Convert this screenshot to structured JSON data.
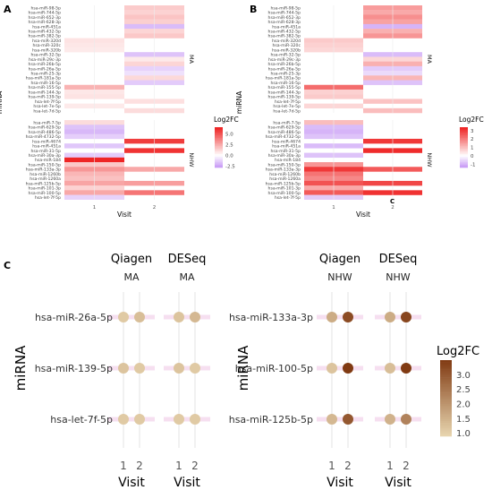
{
  "panel_labels": [
    "A",
    "B",
    "C"
  ],
  "inset_label": "C",
  "chart_data": [
    {
      "type": "heatmap",
      "panel": "A",
      "xlabel": "Visit",
      "ylabel": "miRNA",
      "x_categories": [
        "1",
        "2"
      ],
      "groups": [
        {
          "name": "MA",
          "rows": [
            "hsa-miR-98-5p",
            "hsa-miR-744-5p",
            "hsa-miR-652-3p",
            "hsa-miR-628-3p",
            "hsa-miR-451a",
            "hsa-miR-432-5p",
            "hsa-miR-382-5p",
            "hsa-miR-320d",
            "hsa-miR-320c",
            "hsa-miR-320b",
            "hsa-miR-32-5p",
            "hsa-miR-29c-3p",
            "hsa-miR-26b-5p",
            "hsa-miR-26a-5p",
            "hsa-miR-25-3p",
            "hsa-miR-181a-5p",
            "hsa-miR-16-5p",
            "hsa-miR-155-5p",
            "hsa-miR-144-3p",
            "hsa-miR-139-5p",
            "hsa-let-7f-5p",
            "hsa-let-7e-5p",
            "hsa-let-7d-5p"
          ],
          "values": [
            [
              null,
              1.5
            ],
            [
              null,
              1.3
            ],
            [
              null,
              1.7
            ],
            [
              null,
              1.4
            ],
            [
              null,
              -1.8
            ],
            [
              null,
              1.2
            ],
            [
              null,
              1.6
            ],
            [
              0.8,
              null
            ],
            [
              0.7,
              null
            ],
            [
              0.6,
              null
            ],
            [
              null,
              -1.6
            ],
            [
              null,
              0.6
            ],
            [
              null,
              1.2
            ],
            [
              null,
              -1.2
            ],
            [
              null,
              -0.8
            ],
            [
              null,
              1.1
            ],
            [
              null,
              -1.4
            ],
            [
              2.2,
              null
            ],
            [
              0.7,
              null
            ],
            [
              0.8,
              null
            ],
            [
              null,
              0.9
            ],
            [
              0.6,
              null
            ],
            [
              null,
              1.0
            ]
          ]
        },
        {
          "name": "NHW",
          "rows": [
            "hsa-miR-7-5p",
            "hsa-miR-629-5p",
            "hsa-miR-486-5p",
            "hsa-miR-4732-5p",
            "hsa-miR-4674",
            "hsa-miR-451a",
            "hsa-miR-31-5p",
            "hsa-miR-30a-3p",
            "hsa-miR-184",
            "hsa-miR-150-5p",
            "hsa-miR-133a-3p",
            "hsa-miR-1260b",
            "hsa-miR-1260a",
            "hsa-miR-125b-5p",
            "hsa-miR-101-3p",
            "hsa-miR-100-5p",
            "hsa-let-7f-5p"
          ],
          "values": [
            [
              1.0,
              null
            ],
            [
              -1.6,
              null
            ],
            [
              -1.9,
              null
            ],
            [
              -1.3,
              null
            ],
            [
              null,
              5.6
            ],
            [
              -1.5,
              null
            ],
            [
              null,
              5.9
            ],
            [
              -1.4,
              null
            ],
            [
              6.3,
              null
            ],
            [
              1.6,
              null
            ],
            [
              3.0,
              2.5
            ],
            [
              2.1,
              null
            ],
            [
              1.8,
              null
            ],
            [
              2.6,
              2.8
            ],
            [
              1.3,
              null
            ],
            [
              2.5,
              4.0
            ],
            [
              -1.2,
              null
            ]
          ]
        }
      ],
      "legend": {
        "title": "Log2FC",
        "ticks": [
          5.0,
          2.5,
          0.0,
          -2.5
        ],
        "range": [
          -2.8,
          6.5
        ]
      }
    },
    {
      "type": "heatmap",
      "panel": "B",
      "xlabel": "Visit",
      "ylabel": "miRNA",
      "x_categories": [
        "1",
        "2"
      ],
      "groups": [
        {
          "name": "MA",
          "rows": [
            "hsa-miR-98-5p",
            "hsa-miR-744-5p",
            "hsa-miR-652-3p",
            "hsa-miR-628-3p",
            "hsa-miR-451a",
            "hsa-miR-432-5p",
            "hsa-miR-382-5p",
            "hsa-miR-320d",
            "hsa-miR-320c",
            "hsa-miR-320b",
            "hsa-miR-32-5p",
            "hsa-miR-29c-3p",
            "hsa-miR-26b-5p",
            "hsa-miR-26a-5p",
            "hsa-miR-25-3p",
            "hsa-miR-181a-5p",
            "hsa-miR-16-5p",
            "hsa-miR-155-5p",
            "hsa-miR-144-3p",
            "hsa-miR-139-5p",
            "hsa-let-7f-5p",
            "hsa-let-7e-5p",
            "hsa-let-7d-5p"
          ],
          "values": [
            [
              null,
              1.5
            ],
            [
              null,
              1.3
            ],
            [
              null,
              1.7
            ],
            [
              null,
              1.4
            ],
            [
              null,
              -1.0
            ],
            [
              null,
              1.2
            ],
            [
              null,
              1.6
            ],
            [
              0.8,
              null
            ],
            [
              0.7,
              null
            ],
            [
              0.6,
              null
            ],
            [
              null,
              -0.9
            ],
            [
              null,
              0.6
            ],
            [
              null,
              1.2
            ],
            [
              null,
              -0.7
            ],
            [
              null,
              -0.5
            ],
            [
              null,
              1.1
            ],
            [
              null,
              -0.8
            ],
            [
              2.2,
              null
            ],
            [
              0.7,
              null
            ],
            [
              0.8,
              null
            ],
            [
              null,
              0.9
            ],
            [
              0.6,
              null
            ],
            [
              null,
              1.0
            ]
          ]
        },
        {
          "name": "NHW",
          "rows": [
            "hsa-miR-7-5p",
            "hsa-miR-629-5p",
            "hsa-miR-486-5p",
            "hsa-miR-4732-5p",
            "hsa-miR-4674",
            "hsa-miR-451a",
            "hsa-miR-31-5p",
            "hsa-miR-30a-3p",
            "hsa-miR-184",
            "hsa-miR-150-5p",
            "hsa-miR-133a-3p",
            "hsa-miR-1260b",
            "hsa-miR-1260a",
            "hsa-miR-125b-5p",
            "hsa-miR-101-3p",
            "hsa-miR-100-5p",
            "hsa-let-7f-5p"
          ],
          "values": [
            [
              1.0,
              null
            ],
            [
              -0.9,
              null
            ],
            [
              -1.0,
              null
            ],
            [
              -0.8,
              null
            ],
            [
              null,
              3.0
            ],
            [
              -0.9,
              null
            ],
            [
              null,
              3.2
            ],
            [
              -0.8,
              null
            ],
            [
              null,
              null
            ],
            [
              1.6,
              null
            ],
            [
              3.0,
              2.5
            ],
            [
              2.1,
              null
            ],
            [
              1.8,
              null
            ],
            [
              2.6,
              2.8
            ],
            [
              1.3,
              null
            ],
            [
              2.5,
              3.1
            ],
            [
              -0.7,
              null
            ]
          ]
        }
      ],
      "legend": {
        "title": "Log2FC",
        "ticks": [
          3,
          2,
          1,
          0,
          -1
        ],
        "range": [
          -1.4,
          3.4
        ]
      }
    },
    {
      "type": "scatter",
      "panel": "C",
      "ylabel": "miRNA",
      "xlabel": "Visit",
      "x_categories": [
        "1",
        "2"
      ],
      "facet_headers": [
        "Qiagen",
        "DESeq"
      ],
      "groups": [
        {
          "name": "MA",
          "rows": [
            "hsa-miR-26a-5p",
            "hsa-miR-139-5p",
            "hsa-let-7f-5p"
          ],
          "facets": [
            {
              "method": "Qiagen",
              "values": [
                [
                  1.1,
                  1.3
                ],
                [
                  1.2,
                  1.1
                ],
                [
                  1.1,
                  1.1
                ]
              ]
            },
            {
              "method": "DESeq",
              "values": [
                [
                  1.2,
                  1.4
                ],
                [
                  1.2,
                  1.1
                ],
                [
                  1.1,
                  1.1
                ]
              ]
            }
          ]
        },
        {
          "name": "NHW",
          "rows": [
            "hsa-miR-133a-3p",
            "hsa-miR-100-5p",
            "hsa-miR-125b-5p"
          ],
          "facets": [
            {
              "method": "Qiagen",
              "values": [
                [
                  1.6,
                  3.2
                ],
                [
                  1.2,
                  3.5
                ],
                [
                  1.4,
                  3.0
                ]
              ]
            },
            {
              "method": "DESeq",
              "values": [
                [
                  1.6,
                  3.3
                ],
                [
                  1.3,
                  3.5
                ],
                [
                  1.5,
                  2.3
                ]
              ]
            }
          ]
        }
      ],
      "legend": {
        "title": "Log2FC",
        "ticks": [
          3.0,
          2.5,
          2.0,
          1.5,
          1.0
        ],
        "range": [
          0.9,
          3.5
        ]
      }
    }
  ]
}
